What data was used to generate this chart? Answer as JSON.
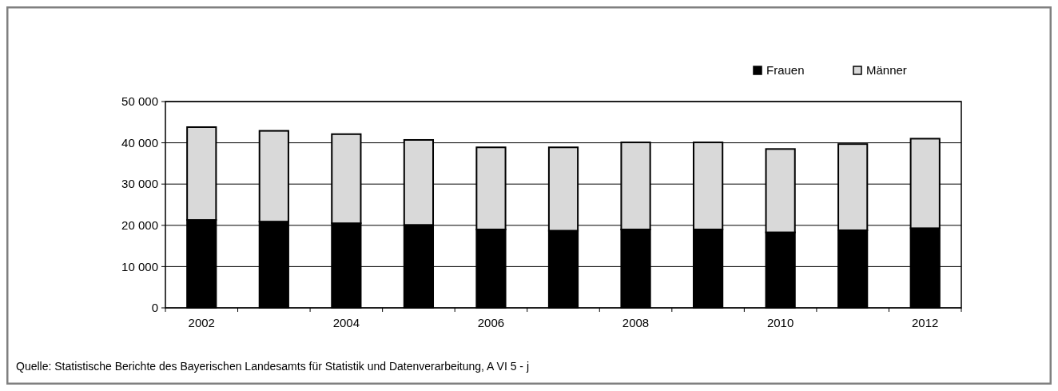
{
  "chart_data": {
    "type": "bar",
    "stacked": true,
    "categories": [
      "2002",
      null,
      "2004",
      null,
      "2006",
      null,
      "2008",
      null,
      "2010",
      null,
      "2012"
    ],
    "series": [
      {
        "name": "Frauen",
        "color": "#000000",
        "values": [
          21300,
          20900,
          20500,
          20100,
          19000,
          18700,
          19000,
          19000,
          18300,
          18800,
          19300
        ]
      },
      {
        "name": "Männer",
        "color": "#d9d9d9",
        "values": [
          22500,
          22000,
          21600,
          20600,
          19900,
          20200,
          21100,
          21100,
          20200,
          20900,
          21700
        ]
      }
    ],
    "ylim": [
      0,
      50000
    ],
    "yticks": [
      {
        "value": 0,
        "label": "0"
      },
      {
        "value": 10000,
        "label": "10 000"
      },
      {
        "value": 20000,
        "label": "20 000"
      },
      {
        "value": 30000,
        "label": "30 000"
      },
      {
        "value": 40000,
        "label": "40 000"
      },
      {
        "value": 50000,
        "label": "50 000"
      }
    ],
    "grid": "y",
    "legend": "top right",
    "annotations": [
      "Quelle: Statistische Berichte des Bayerischen Landesamts für Statistik und Datenverarbeitung, A VI 5 - j"
    ]
  }
}
